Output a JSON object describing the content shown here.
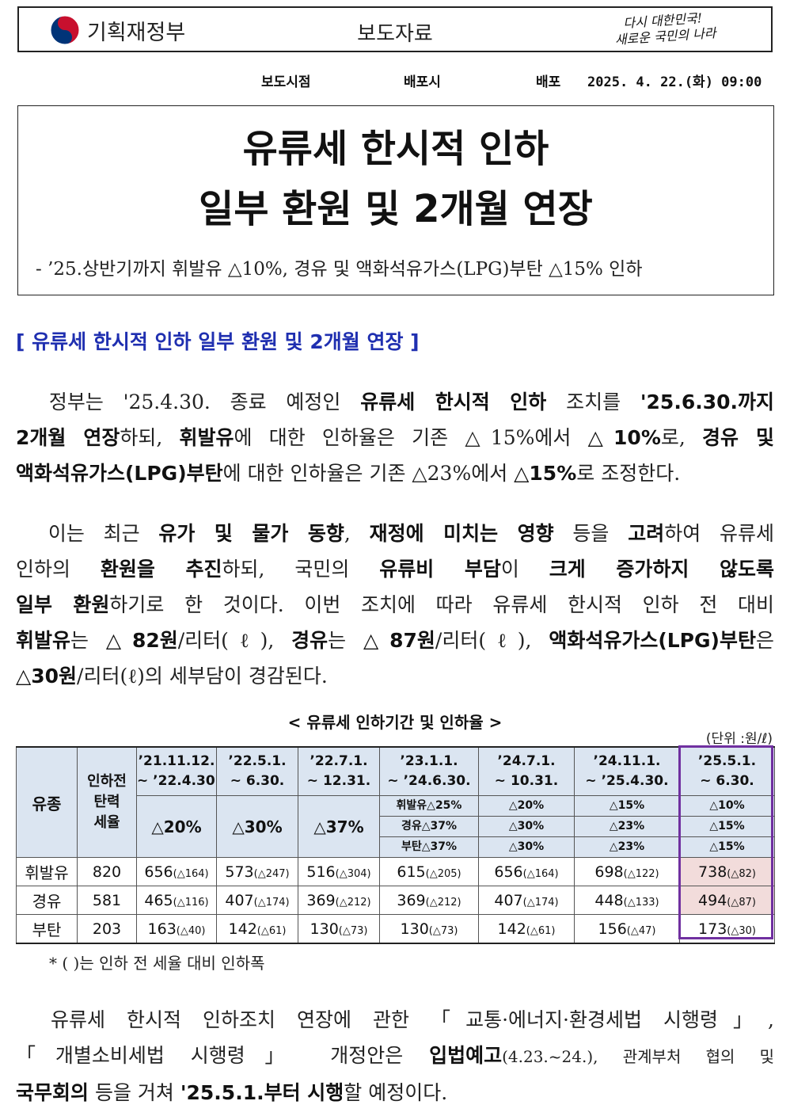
{
  "header": {
    "ministry": "기획재정부",
    "doc_type": "보도자료",
    "slogan_line1": "다시 대한민국!",
    "slogan_line2": "새로운 국민의 나라"
  },
  "release": {
    "time_label": "보도시점",
    "dist_label": "배포시",
    "dist_prefix": "배포",
    "date": "2025. 4. 22.(화) 09:00"
  },
  "title": {
    "line1": "유류세 한시적 인하",
    "line2": "일부 환원 및 2개월 연장",
    "subtitle": "- ’25.상반기까지 휘발유 △10%, 경유 및 액화석유가스(LPG)부탄 △15% 인하"
  },
  "section_heading": "[ 유류세 한시적 인하 일부 환원 및 2개월 연장 ]",
  "para1": {
    "l1a": "　정부는 '25.4.30. 종료 예정인 ",
    "l1b": "유류세 한시적 인하",
    "l1c": " 조치를 ",
    "l1d": "'25.6.30.까지",
    "l2a": "2개월 연장",
    "l2b": "하되, ",
    "l2c": "휘발유",
    "l2d": "에 대한 인하율은 기존 △15%에서 ",
    "l2e": "△10%",
    "l2f": "로, ",
    "l2g": "경유 및",
    "l3a": "액화석유가스(LPG)부탄",
    "l3b": "에 대한 인하율은 기존 △23%에서 ",
    "l3c": "△15%",
    "l3d": "로 조정한다."
  },
  "para2": {
    "l1a": "　이는 최근 ",
    "l1b": "유가 및 물가 동향",
    "l1c": ", ",
    "l1d": "재정에 미치는 영향",
    "l1e": " 등을 ",
    "l1f": "고려",
    "l1g": "하여 유류세",
    "l2a": "인하의 ",
    "l2b": "환원을 추진",
    "l2c": "하되, 국민의 ",
    "l2d": "유류비 부담",
    "l2e": "이 ",
    "l2f": "크게 증가하지 않도록",
    "l3a": "일부 환원",
    "l3b": "하기로 한 것이다. 이번 조치에 따라 유류세 한시적 인하 전 대비",
    "l4a": "휘발유",
    "l4b": "는 ",
    "l4c": "△82원",
    "l4d": "/리터(ℓ), ",
    "l4e": "경유",
    "l4f": "는 ",
    "l4g": "△87원",
    "l4h": "/리터(ℓ), ",
    "l4i": "액화석유가스(LPG)부탄",
    "l4j": "은",
    "l5a": "△30원",
    "l5b": "/리터(ℓ)의 세부담이 경감된다."
  },
  "table": {
    "title": "< 유류세 인하기간 및 인하율 >",
    "unit": "(단위 :원/ℓ)",
    "corner_fuel": "유종",
    "corner_base_l1": "인하전",
    "corner_base_l2": "탄력",
    "corner_base_l3": "세율",
    "periods": [
      {
        "l1": "’21.11.12.",
        "l2": "~ ’22.4.30."
      },
      {
        "l1": "’22.5.1.",
        "l2": "~ 6.30."
      },
      {
        "l1": "’22.7.1.",
        "l2": "~ 12.31."
      },
      {
        "l1": "’23.1.1.",
        "l2": "~ ’24.6.30."
      },
      {
        "l1": "’24.7.1.",
        "l2": "~ 10.31."
      },
      {
        "l1": "’24.11.1.",
        "l2": "~ ’25.4.30."
      },
      {
        "l1": "’25.5.1.",
        "l2": "~ 6.30."
      }
    ],
    "rates_single": [
      "△20%",
      "△30%",
      "△37%"
    ],
    "rates_split": {
      "p4": [
        "휘발유△25%",
        "경유△37%",
        "부탄△37%"
      ],
      "p5": [
        "△20%",
        "△30%",
        "△30%"
      ],
      "p6": [
        "△15%",
        "△23%",
        "△23%"
      ],
      "p7": [
        "△10%",
        "△15%",
        "△15%"
      ]
    },
    "rows": [
      {
        "fuel": "휘발유",
        "base": "820",
        "cells": [
          [
            "656",
            "(△164)"
          ],
          [
            "573",
            "(△247)"
          ],
          [
            "516",
            "(△304)"
          ],
          [
            "615",
            "(△205)"
          ],
          [
            "656",
            "(△164)"
          ],
          [
            "698",
            "(△122)"
          ],
          [
            "738",
            "(△82)"
          ]
        ]
      },
      {
        "fuel": "경유",
        "base": "581",
        "cells": [
          [
            "465",
            "(△116)"
          ],
          [
            "407",
            "(△174)"
          ],
          [
            "369",
            "(△212)"
          ],
          [
            "369",
            "(△212)"
          ],
          [
            "407",
            "(△174)"
          ],
          [
            "448",
            "(△133)"
          ],
          [
            "494",
            "(△87)"
          ]
        ]
      },
      {
        "fuel": "부탄",
        "base": "203",
        "cells": [
          [
            "163",
            "(△40)"
          ],
          [
            "142",
            "(△61)"
          ],
          [
            "130",
            "(△73)"
          ],
          [
            "130",
            "(△73)"
          ],
          [
            "142",
            "(△61)"
          ],
          [
            "156",
            "(△47)"
          ],
          [
            "173",
            "(△30)"
          ]
        ]
      }
    ],
    "footnote": "* ( )는 인하 전 세율 대비 인하폭",
    "highlight_color": "#f2dcdb",
    "outline_color": "#7030a0",
    "header_bg": "#dbe5f1"
  },
  "para3": {
    "l1": "　유류세 한시적 인하조치 연장에 관한 「교통·에너지·환경세법 시행령」,",
    "l2a": "「개별소비세법 시행령」 개정안은 ",
    "l2b": "입법예고",
    "l2c": "(4.23.~24.), 관계부처 협의 및",
    "l3a": "국무회의",
    "l3b": " 등을 거쳐 ",
    "l3c": "'25.5.1.부터 시행",
    "l3d": "할 예정이다."
  },
  "colors": {
    "section_heading": "#1f2fb0"
  }
}
